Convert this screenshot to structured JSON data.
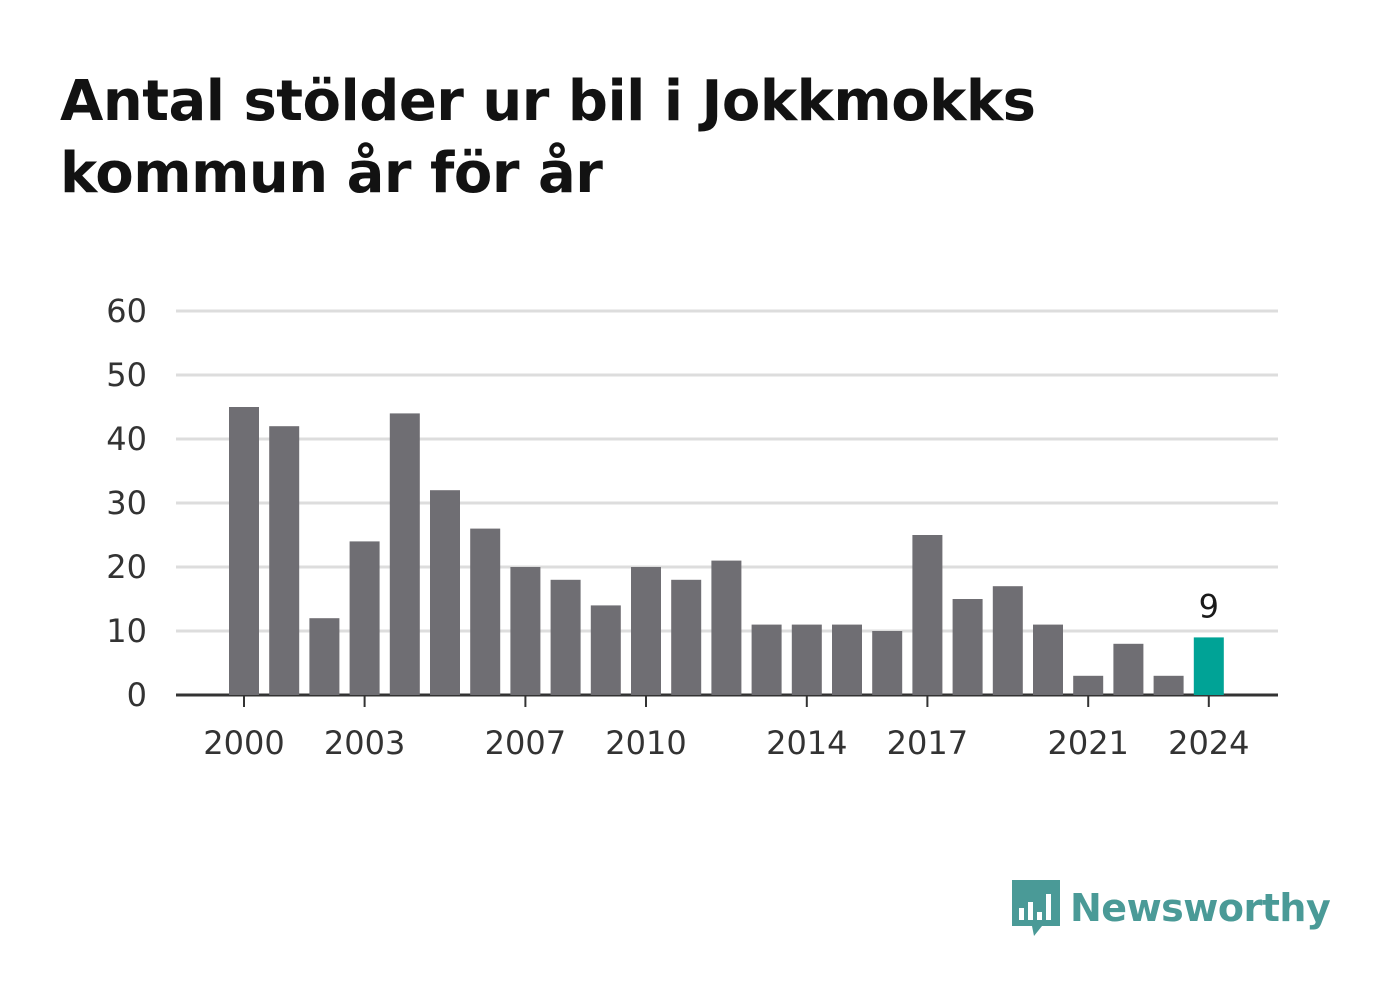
{
  "title": "Antal stölder ur bil i Jokkmokks kommun år för år",
  "brand": {
    "name": "Newsworthy",
    "icon": "bar-chart-speech-bubble-icon",
    "color": "#4a9a97"
  },
  "colors": {
    "bar": "#6f6e73",
    "highlight": "#00a396",
    "grid": "#dddddd",
    "axis": "#333333"
  },
  "chart_data": {
    "type": "bar",
    "title": "Antal stölder ur bil i Jokkmokks kommun år för år",
    "xlabel": "",
    "ylabel": "",
    "categories": [
      2000,
      2001,
      2002,
      2003,
      2004,
      2005,
      2006,
      2007,
      2008,
      2009,
      2010,
      2011,
      2012,
      2013,
      2014,
      2015,
      2016,
      2017,
      2018,
      2019,
      2020,
      2021,
      2022,
      2023,
      2024
    ],
    "values": [
      45,
      42,
      12,
      24,
      44,
      32,
      26,
      20,
      18,
      14,
      20,
      18,
      21,
      11,
      11,
      11,
      10,
      25,
      15,
      17,
      11,
      3,
      8,
      3,
      9
    ],
    "ylim": [
      0,
      60
    ],
    "yticks": [
      0,
      10,
      20,
      30,
      40,
      50,
      60
    ],
    "xticks": [
      2000,
      2003,
      2007,
      2010,
      2014,
      2017,
      2021,
      2024
    ],
    "highlight": {
      "category": 2024,
      "label": "9"
    },
    "grid": true,
    "legend": "none"
  }
}
